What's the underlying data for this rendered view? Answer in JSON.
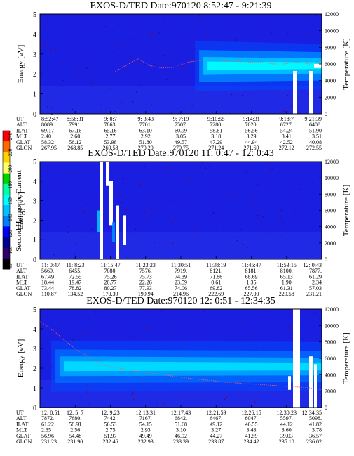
{
  "colorbar": {
    "label": "Second Harmonic Current",
    "ticks": [
      "240",
      "220",
      "200",
      "180",
      "160",
      "140",
      "120",
      "100",
      "80"
    ],
    "colors": [
      "#ff0000",
      "#ff6a00",
      "#ffd200",
      "#ffff6a",
      "#00d200",
      "#00ffa0",
      "#00ffff",
      "#00c0ff",
      "#0080ff",
      "#0000ff",
      "#000090",
      "#300070",
      "#000000"
    ]
  },
  "chart_data": [
    {
      "type": "heatmap",
      "title": "EXOS-D/TED   Date:970120  8:52:47 - 9:21:39",
      "ylabel": "Energy [eV]",
      "ylabel_right": "Temperature [K]",
      "ylim": [
        0,
        5
      ],
      "ylim_right": [
        0,
        12000
      ],
      "y_ticks": [
        "0",
        "1",
        "2",
        "3",
        "4",
        "5"
      ],
      "y_right_ticks": [
        "0",
        "2000",
        "4000",
        "6000",
        "8000",
        "10000",
        "12000"
      ],
      "row_labels": [
        "UT",
        "ALT",
        "ILAT",
        "MLT",
        "GLAT",
        "GLON"
      ],
      "columns": [
        [
          "8:52:47",
          "8089",
          "69.17",
          "2.40",
          "58.32",
          "267.95"
        ],
        [
          "8:56:31",
          "7991.",
          "67.16",
          "2.60",
          "56.12",
          "268.85"
        ],
        [
          "9: 0:7",
          "7863.",
          "65.16",
          "2.77",
          "53.98",
          "269.58"
        ],
        [
          "9: 3:43",
          "7701.",
          "63.10",
          "2.92",
          "51.80",
          "270.20"
        ],
        [
          "9: 7:19",
          "7507.",
          "60.99",
          "3.05",
          "49.57",
          "270.75"
        ],
        [
          "9:10:55",
          "7280.",
          "58.81",
          "3.18",
          "47.29",
          "271.24"
        ],
        [
          "9:14:31",
          "7020.",
          "56.56",
          "3.29",
          "44.94",
          "271.69"
        ],
        [
          "9:18:7",
          "6727.",
          "54.24",
          "3.41",
          "42.52",
          "272.12"
        ],
        [
          "9:21:39",
          "6408.",
          "51.90",
          "3.51",
          "40.08",
          "272.55"
        ]
      ],
      "temperature_curve_K": [
        0,
        0,
        0,
        0,
        0,
        0,
        5000,
        5800,
        6600,
        5800,
        5500,
        5600,
        6200,
        6400,
        6500,
        6400,
        6300,
        6200,
        6200,
        6000,
        6000,
        6200,
        6000,
        6300
      ],
      "band": {
        "start_frac": 0.55,
        "center_eV": 2.4,
        "intensity": "high"
      }
    },
    {
      "type": "heatmap",
      "title": "EXOS-D/TED   Date:970120  11: 0:47 - 12: 0:43",
      "ylabel": "Energy [eV]",
      "ylabel_right": "Temperature [K]",
      "ylim": [
        0,
        5
      ],
      "ylim_right": [
        0,
        12000
      ],
      "y_ticks": [
        "0",
        "1",
        "2",
        "3",
        "4",
        "5"
      ],
      "y_right_ticks": [
        "0",
        "2000",
        "4000",
        "6000",
        "8000",
        "10000",
        "12000"
      ],
      "row_labels": [
        "UT",
        "ALT",
        "ILAT",
        "MLT",
        "GLAT",
        "GLON"
      ],
      "columns": [
        [
          "11: 0:47",
          "5669.",
          "67.49",
          "18.44",
          "73.44",
          "110.87"
        ],
        [
          "11: 8:23",
          "6455.",
          "72.55",
          "19.47",
          "78.82",
          "134.52"
        ],
        [
          "11:15:47",
          "7080.",
          "75.26",
          "20.77",
          "80.27",
          "170.39"
        ],
        [
          "11:23:23",
          "7576.",
          "75.73",
          "22.26",
          "77.93",
          "199.94"
        ],
        [
          "11:30:51",
          "7919.",
          "74.39",
          "23.59",
          "74.06",
          "214.96"
        ],
        [
          "11:38:19",
          "8121.",
          "71.86",
          "0.61",
          "69.82",
          "222.69"
        ],
        [
          "11:45:47",
          "8181.",
          "68.69",
          "1.35",
          "65.56",
          "227.00"
        ],
        [
          "11:53:15",
          "8100.",
          "65.13",
          "1.90",
          "61.31",
          "229.58"
        ],
        [
          "12: 0:43",
          "7877.",
          "61.29",
          "2.34",
          "57.03",
          "231.21"
        ]
      ]
    },
    {
      "type": "heatmap",
      "title": "EXOS-D/TED   Date:970120  12: 0:51 - 12:34:35",
      "ylabel": "Energy [eV]",
      "ylabel_right": "Temperature [K]",
      "ylim": [
        0,
        5
      ],
      "ylim_right": [
        0,
        12000
      ],
      "y_ticks": [
        "0",
        "1",
        "2",
        "3",
        "4",
        "5"
      ],
      "y_right_ticks": [
        "0",
        "2000",
        "4000",
        "6000",
        "8000",
        "10000",
        "12000"
      ],
      "row_labels": [
        "UT",
        "ALT",
        "ILAT",
        "MLT",
        "GLAT",
        "GLON"
      ],
      "columns": [
        [
          "12: 0:51",
          "7872.",
          "61.22",
          "2.35",
          "56.96",
          "231.23"
        ],
        [
          "12: 5: 7",
          "7680.",
          "58.91",
          "2.56",
          "54.48",
          "231.90"
        ],
        [
          "12: 9:23",
          "7442.",
          "56.53",
          "2.75",
          "51.97",
          "232.46"
        ],
        [
          "12:13:31",
          "7167.",
          "54.15",
          "2.93",
          "49.49",
          "232.93"
        ],
        [
          "12:17:43",
          "6842.",
          "51.68",
          "3.10",
          "46.92",
          "233.39"
        ],
        [
          "12:21:59",
          "6467.",
          "49.12",
          "3.27",
          "44.27",
          "233.87"
        ],
        [
          "12:26:15",
          "6047.",
          "46.55",
          "3.43",
          "41.59",
          "234.42"
        ],
        [
          "12:30:23",
          "5597.",
          "44.12",
          "3.60",
          "39.03",
          "235.10"
        ],
        [
          "12:34:35",
          "5098.",
          "41.82",
          "3.78",
          "36.57",
          "236.02"
        ]
      ],
      "temperature_curve_K": [
        10500,
        9500,
        8200,
        7000,
        6200,
        5200,
        4900,
        4600,
        4400,
        4200,
        4000,
        3800,
        3600,
        3400,
        3300,
        3100,
        3000,
        2900,
        2800,
        2700,
        2600,
        2500,
        2400,
        2200
      ],
      "band": {
        "start_frac": 0.04,
        "center_eV": 2.1,
        "intensity": "medium"
      }
    }
  ]
}
